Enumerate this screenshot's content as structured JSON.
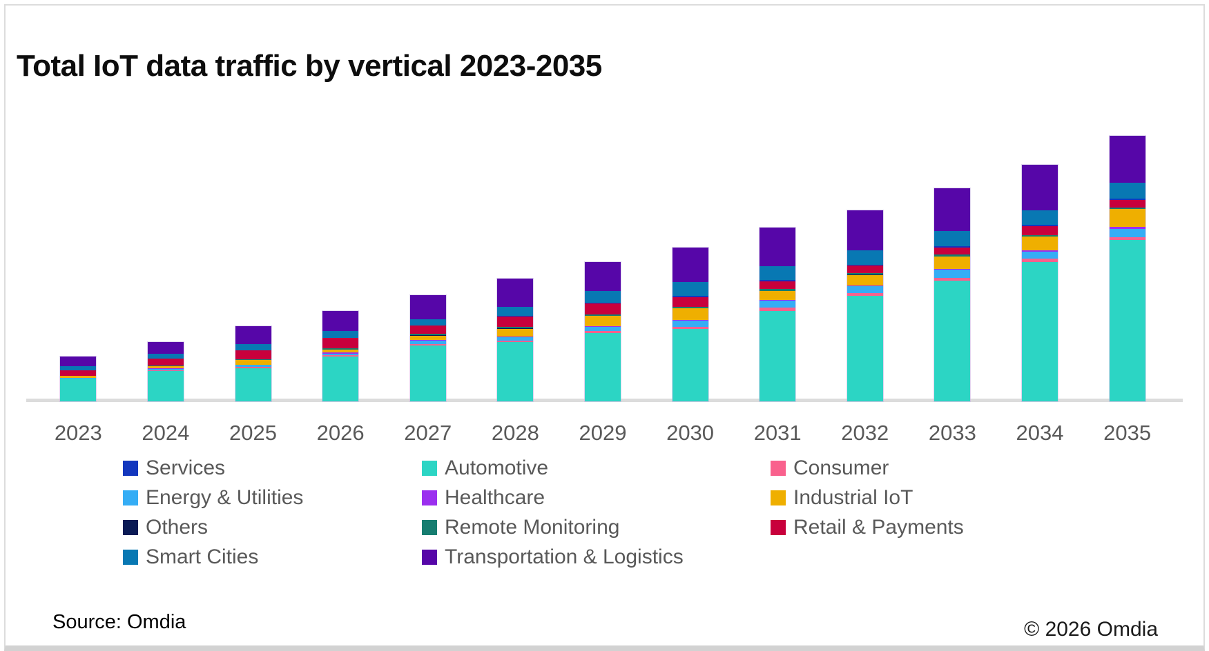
{
  "title": "Total IoT data traffic by vertical 2023-2035",
  "source": "Source: Omdia",
  "copyright": "© 2026 Omdia",
  "chart_data": {
    "type": "bar",
    "stacked": true,
    "grid": false,
    "value_axis_visible": false,
    "units": "relative height units (no value axis shown in chart)",
    "title": "Total IoT data traffic by vertical 2023-2035",
    "xlabel": "",
    "ylabel": "",
    "legend_position": "bottom",
    "categories": [
      "2023",
      "2024",
      "2025",
      "2026",
      "2027",
      "2028",
      "2029",
      "2030",
      "2031",
      "2032",
      "2033",
      "2034",
      "2035"
    ],
    "series": [
      {
        "name": "Automotive",
        "color": "#2cd5c4",
        "values": [
          32.7,
          44,
          48.5,
          65,
          81,
          86,
          99,
          105,
          130.7,
          153,
          175,
          202,
          234
        ]
      },
      {
        "name": "Consumer",
        "color": "#f9618d",
        "values": [
          0.5,
          1.5,
          1.7,
          1.7,
          2.4,
          1.8,
          2.7,
          3.4,
          5,
          4,
          4,
          5,
          4
        ]
      },
      {
        "name": "Energy & Utilities",
        "color": "#35adf5",
        "values": [
          0.6,
          1.8,
          2.5,
          2.7,
          5,
          5,
          6.7,
          8.3,
          10,
          10,
          11.7,
          10,
          12
        ]
      },
      {
        "name": "Healthcare",
        "color": "#9b2fef",
        "values": [
          0.2,
          0.3,
          0.7,
          1.2,
          0.8,
          1,
          1,
          1.2,
          1.3,
          1.5,
          1,
          2,
          3.3
        ]
      },
      {
        "name": "Industrial IoT",
        "color": "#efaf00",
        "values": [
          2.7,
          3.3,
          6.6,
          4.5,
          6,
          11.7,
          14.3,
          16.7,
          13,
          15,
          18.3,
          20,
          25.7
        ]
      },
      {
        "name": "Others",
        "color": "#0a1a55",
        "values": [
          0.2,
          0.2,
          0.3,
          0.3,
          0.4,
          0.4,
          0.4,
          0.5,
          0.5,
          0.5,
          0.5,
          0.5,
          0.5
        ]
      },
      {
        "name": "Remote Monitoring",
        "color": "#167d70",
        "values": [
          0.5,
          0.8,
          1,
          1.2,
          2.3,
          2,
          2.3,
          2,
          3,
          2,
          2.4,
          2,
          2
        ]
      },
      {
        "name": "Retail & Payments",
        "color": "#c8003c",
        "values": [
          7.7,
          10,
          12.3,
          15,
          11.7,
          14.7,
          15.4,
          14.4,
          11,
          11,
          10,
          12.6,
          11
        ]
      },
      {
        "name": "Services",
        "color": "#1337be",
        "values": [
          0.4,
          0.5,
          0.8,
          0.8,
          0.9,
          1,
          1,
          1.2,
          1.2,
          1.5,
          2,
          1.5,
          1.5
        ]
      },
      {
        "name": "Smart Cities",
        "color": "#0878b3",
        "values": [
          5.5,
          6.5,
          9,
          10,
          8.3,
          13.3,
          17,
          20,
          20,
          20.7,
          22.3,
          21.7,
          23
        ]
      },
      {
        "name": "Transportation & Logistics",
        "color": "#5606a8",
        "values": [
          13.7,
          17,
          25.6,
          29,
          35.7,
          41,
          42,
          50,
          56,
          58.3,
          61.7,
          65.7,
          68.3
        ]
      }
    ],
    "legend_order": [
      "Services",
      "Automotive",
      "Consumer",
      "Energy & Utilities",
      "Healthcare",
      "Industrial IoT",
      "Others",
      "Remote Monitoring",
      "Retail & Payments",
      "Smart Cities",
      "Transportation & Logistics"
    ]
  }
}
